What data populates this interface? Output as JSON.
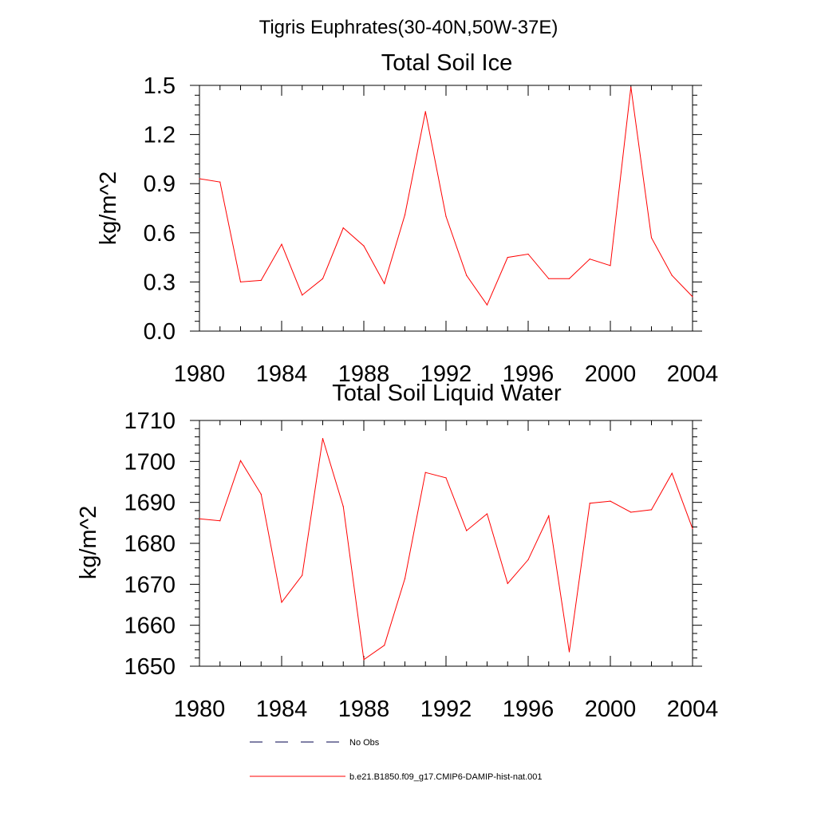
{
  "figure": {
    "title": "Tigris Euphrates(30-40N,50W-37E)"
  },
  "chart_data": [
    {
      "type": "line",
      "title": "Total Soil Ice",
      "xlabel": "",
      "ylabel": "kg/m^2",
      "xlim": [
        1980,
        2004
      ],
      "ylim": [
        0,
        1.5
      ],
      "x_ticks": [
        "1980",
        "1984",
        "1988",
        "1992",
        "1996",
        "2000",
        "2004"
      ],
      "y_ticks": [
        "0.0",
        "0.3",
        "0.6",
        "0.9",
        "1.2",
        "1.5"
      ],
      "grid": false,
      "x": [
        1980,
        1981,
        1982,
        1983,
        1984,
        1985,
        1986,
        1987,
        1988,
        1989,
        1990,
        1991,
        1992,
        1993,
        1994,
        1995,
        1996,
        1997,
        1998,
        1999,
        2000,
        2001,
        2002,
        2003,
        2004
      ],
      "series": [
        {
          "name": "b.e21.B1850.f09_g17.CMIP6-DAMIP-hist-nat.001",
          "color": "#ff0000",
          "values": [
            0.93,
            0.91,
            0.3,
            0.31,
            0.53,
            0.22,
            0.32,
            0.63,
            0.52,
            0.29,
            0.71,
            1.34,
            0.7,
            0.34,
            0.16,
            0.45,
            0.47,
            0.32,
            0.32,
            0.44,
            0.4,
            1.49,
            0.57,
            0.34,
            0.21
          ]
        }
      ]
    },
    {
      "type": "line",
      "title": "Total Soil Liquid Water",
      "xlabel": "",
      "ylabel": "kg/m^2",
      "xlim": [
        1980,
        2004
      ],
      "ylim": [
        1650,
        1710
      ],
      "x_ticks": [
        "1980",
        "1984",
        "1988",
        "1992",
        "1996",
        "2000",
        "2004"
      ],
      "y_ticks": [
        "1650",
        "1660",
        "1670",
        "1680",
        "1690",
        "1700",
        "1710"
      ],
      "grid": false,
      "x": [
        1980,
        1981,
        1982,
        1983,
        1984,
        1985,
        1986,
        1987,
        1988,
        1989,
        1990,
        1991,
        1992,
        1993,
        1994,
        1995,
        1996,
        1997,
        1998,
        1999,
        2000,
        2001,
        2002,
        2003,
        2004
      ],
      "series": [
        {
          "name": "b.e21.B1850.f09_g17.CMIP6-DAMIP-hist-nat.001",
          "color": "#ff0000",
          "values": [
            1686,
            1685.5,
            1700.2,
            1692,
            1665.6,
            1672.2,
            1705.6,
            1689,
            1651.6,
            1655.1,
            1671.4,
            1697.3,
            1696,
            1683.1,
            1687.2,
            1670.2,
            1676,
            1686.7,
            1653.5,
            1689.8,
            1690.3,
            1687.6,
            1688.2,
            1697.1,
            1683.6
          ]
        }
      ]
    }
  ],
  "legend": {
    "placement": "bottom",
    "items": [
      {
        "label": "No Obs",
        "color": "#00004d",
        "style": "dashed"
      },
      {
        "label": "b.e21.B1850.f09_g17.CMIP6-DAMIP-hist-nat.001",
        "color": "#ff0000",
        "style": "solid"
      }
    ]
  }
}
